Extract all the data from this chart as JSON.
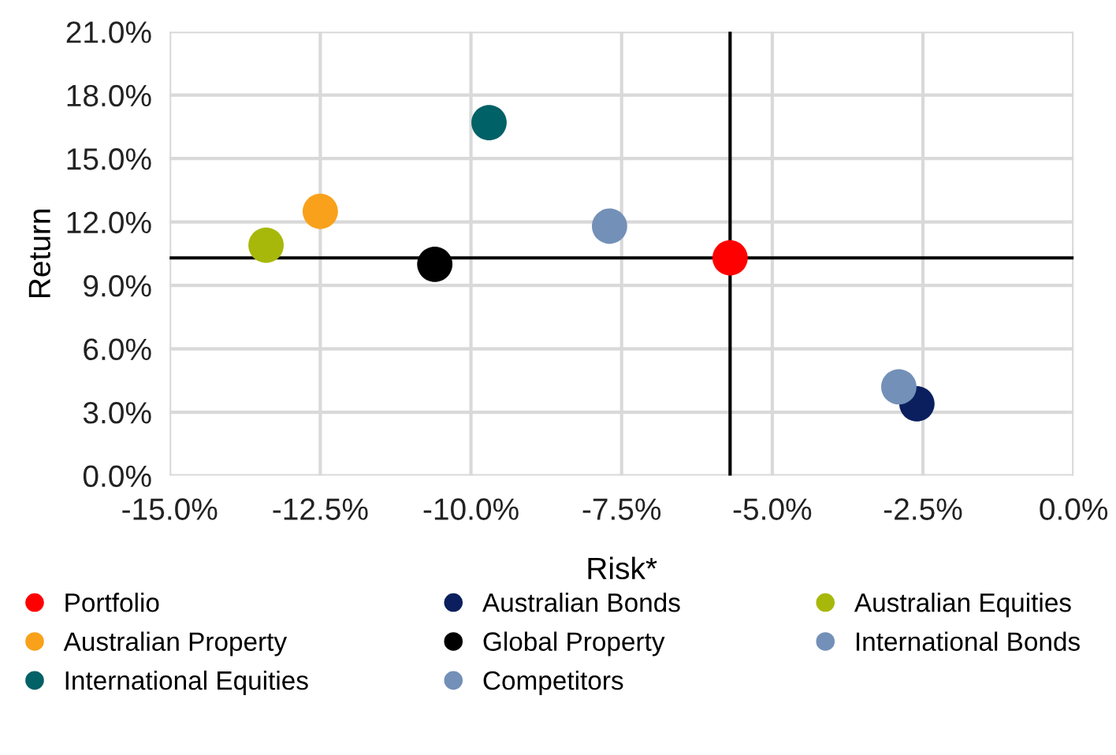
{
  "chart_data": {
    "type": "scatter",
    "xlabel": "Risk*",
    "ylabel": "Return",
    "xlim": [
      -15,
      0
    ],
    "ylim": [
      0,
      21
    ],
    "xticks": [
      {
        "value": -15,
        "label": "-15.0%"
      },
      {
        "value": -12.5,
        "label": "-12.5%"
      },
      {
        "value": -10,
        "label": "-10.0%"
      },
      {
        "value": -7.5,
        "label": "-7.5%"
      },
      {
        "value": -5,
        "label": "-5.0%"
      },
      {
        "value": -2.5,
        "label": "-2.5%"
      },
      {
        "value": 0,
        "label": "0.0%"
      }
    ],
    "yticks": [
      {
        "value": 0,
        "label": "0.0%"
      },
      {
        "value": 3,
        "label": "3.0%"
      },
      {
        "value": 6,
        "label": "6.0%"
      },
      {
        "value": 9,
        "label": "9.0%"
      },
      {
        "value": 12,
        "label": "12.0%"
      },
      {
        "value": 15,
        "label": "15.0%"
      },
      {
        "value": 18,
        "label": "18.0%"
      },
      {
        "value": 21,
        "label": "21.0%"
      }
    ],
    "grid": true,
    "legend": "bottom",
    "marker": "circle",
    "ref_lines": [
      {
        "axis": "x",
        "value": -5.7,
        "label": null,
        "color": "#000000"
      },
      {
        "axis": "y",
        "value": 10.3,
        "label": null,
        "color": "#000000"
      }
    ],
    "series": [
      {
        "name": "Portfolio",
        "color": "#ff0000",
        "x": [
          -5.7
        ],
        "values": [
          10.3
        ]
      },
      {
        "name": "Australian Bonds",
        "color": "#0b1f5e",
        "x": [
          -2.6
        ],
        "values": [
          3.4
        ]
      },
      {
        "name": "Australian Equities",
        "color": "#a7b80a",
        "x": [
          -13.4
        ],
        "values": [
          10.9
        ]
      },
      {
        "name": "Australian Property",
        "color": "#f9a11b",
        "x": [
          -12.5
        ],
        "values": [
          12.5
        ]
      },
      {
        "name": "Global Property",
        "color": "#000000",
        "x": [
          -10.6
        ],
        "values": [
          10.0
        ]
      },
      {
        "name": "International Bonds",
        "color": "#7390b8",
        "x": [
          -2.9
        ],
        "values": [
          4.2
        ]
      },
      {
        "name": "International Equities",
        "color": "#006166",
        "x": [
          -9.7
        ],
        "values": [
          16.7
        ]
      },
      {
        "name": "Competitors",
        "color": "#7390b8",
        "x": [
          -7.7
        ],
        "values": [
          11.8
        ]
      }
    ]
  }
}
